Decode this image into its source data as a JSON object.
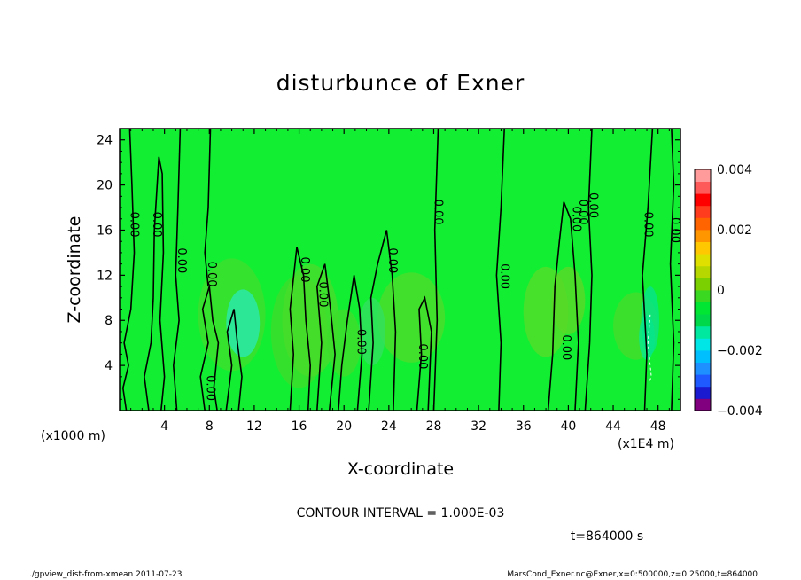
{
  "chart_data": {
    "type": "heatmap",
    "title": "disturbunce of Exner",
    "xlabel": "X-coordinate",
    "ylabel": "Z-coordinate",
    "x_unit": "(x1E4 m)",
    "y_unit": "(x1000 m)",
    "xlim": [
      0,
      50
    ],
    "ylim": [
      0,
      25
    ],
    "x_ticks": [
      4,
      8,
      12,
      16,
      20,
      24,
      28,
      32,
      36,
      40,
      44,
      48
    ],
    "y_ticks": [
      4,
      8,
      12,
      16,
      20,
      24
    ],
    "colorbar": {
      "min": -0.004,
      "max": 0.004,
      "tick_values": [
        0.004,
        0.002,
        0,
        -0.002,
        -0.004
      ],
      "tick_labels": [
        "0.004",
        "0.002",
        "0",
        "−0.002",
        "−0.004"
      ],
      "colors": [
        "#800080",
        "#1a1ad0",
        "#1e5aff",
        "#1e90ff",
        "#00bfff",
        "#00e5e5",
        "#00e8a0",
        "#00d84a",
        "#00e632",
        "#3ad820",
        "#7ad000",
        "#b6d800",
        "#e0e000",
        "#ffc800",
        "#ff9600",
        "#ff6400",
        "#ff3c1e",
        "#ff0000",
        "#ff5a5a",
        "#ff9b9b"
      ]
    },
    "contour_interval_text": "CONTOUR INTERVAL = 1.000E-03",
    "contour_label": "0.00",
    "time_text": "t=864000 s",
    "background_value": 0.0001
  },
  "footer": {
    "left": "./gpview_dist-from-xmean   2011-07-23",
    "right": "MarsCond_Exner.nc@Exner,x=0:500000,z=0:25000,t=864000"
  }
}
